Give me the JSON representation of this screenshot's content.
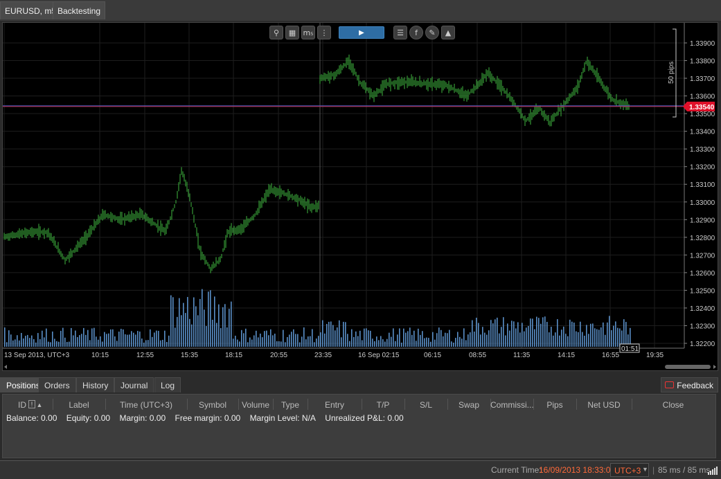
{
  "window_tabs": [
    "EURUSD, m5",
    "Backtesting"
  ],
  "toolbar": {
    "buttons": [
      "zoom-icon",
      "chart-settings-icon",
      "timeframe-icon",
      "chart-type-icon",
      "play-icon",
      "indicators-icon",
      "facebook-icon",
      "brush-icon",
      "objects-icon"
    ],
    "timeframe_label": "m₅"
  },
  "chart": {
    "pips_label": "50 pips",
    "current_price": "1.33540",
    "price_ticks": [
      "1.33900",
      "1.33800",
      "1.33700",
      "1.33600",
      "1.33500",
      "1.33400",
      "1.33300",
      "1.33200",
      "1.33100",
      "1.33000",
      "1.32900",
      "1.32800",
      "1.32700",
      "1.32600",
      "1.32500",
      "1.32400",
      "1.32300",
      "1.32200"
    ],
    "time_ticks": [
      "13 Sep 2013, UTC+3",
      "10:15",
      "12:55",
      "15:35",
      "18:15",
      "20:55",
      "23:35",
      "16 Sep 02:15",
      "06:15",
      "08:55",
      "11:35",
      "14:15",
      "16:55",
      "19:35"
    ],
    "countdown": "01:51",
    "colors": {
      "candle": "#3fb83f",
      "volume": "#5a8fc7",
      "bid_line": "#c0304a",
      "ask_line": "#4a5fd0"
    }
  },
  "chart_data": {
    "type": "bar",
    "title": "",
    "xlabel": "",
    "ylabel": "",
    "ylim": [
      1.3215,
      1.3395
    ],
    "series": [
      {
        "name": "",
        "x": [
          "13 Sep 2013, UTC+3",
          "10:15",
          "12:55",
          "15:35",
          "18:15",
          "20:55",
          "23:35",
          "16 Sep 02:15",
          "06:15",
          "08:55",
          "11:35",
          "14:15",
          "16:55"
        ],
        "values": [
          1.3279,
          1.3283,
          1.3293,
          1.3303,
          1.3262,
          1.3302,
          1.3297,
          1.3372,
          1.3368,
          1.3364,
          1.3351,
          1.3362,
          1.3353
        ]
      }
    ]
  },
  "bottom_tabs": [
    "Positions",
    "Orders",
    "History",
    "Journal",
    "Log"
  ],
  "feedback_label": "Feedback",
  "positions": {
    "columns": [
      "ID",
      "Label",
      "Time (UTC+3)",
      "Symbol",
      "Volume",
      "Type",
      "Entry",
      "T/P",
      "S/L",
      "Swap",
      "Commissi...",
      "Pips",
      "Net USD",
      "Close"
    ],
    "sort_badge": "!",
    "summary": [
      "Balance: 0.00",
      "Equity: 0.00",
      "Margin: 0.00",
      "Free margin: 0.00",
      "Margin Level: N/A",
      "Unrealized P&L: 0.00"
    ]
  },
  "status": {
    "current_time_label": "Current Time:",
    "current_time_value": "16/09/2013 18:33:08",
    "timezone": "UTC+3",
    "latency": "85 ms / 85 ms"
  }
}
